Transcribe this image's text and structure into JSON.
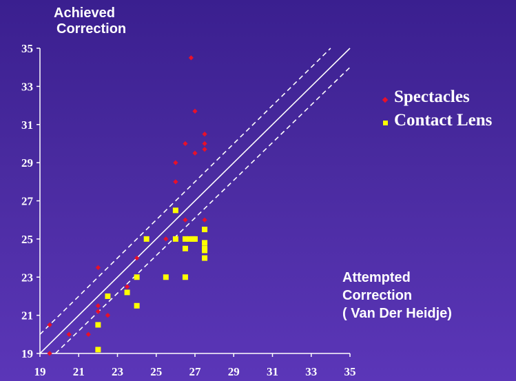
{
  "chart_data": {
    "type": "scatter",
    "ylabel_lines": [
      "Achieved",
      "Correction"
    ],
    "xlabel_lines": [
      "Attempted",
      "Correction",
      "( Van Der Heidje)"
    ],
    "xlim": [
      19,
      35
    ],
    "ylim": [
      19,
      35
    ],
    "xticks": [
      19,
      21,
      23,
      25,
      27,
      29,
      31,
      33,
      35
    ],
    "yticks": [
      19,
      21,
      23,
      25,
      27,
      29,
      31,
      33,
      35
    ],
    "legend_position": "right",
    "reference_lines": [
      {
        "style": "solid",
        "points": [
          [
            19,
            19
          ],
          [
            35,
            35
          ]
        ]
      },
      {
        "style": "dashed",
        "points": [
          [
            19,
            20
          ],
          [
            34,
            35
          ]
        ]
      },
      {
        "style": "dashed",
        "points": [
          [
            19.8,
            19
          ],
          [
            35,
            34
          ]
        ]
      }
    ],
    "series": [
      {
        "name": "Spectacles",
        "marker": "diamond",
        "color": "#e8102a",
        "points": [
          [
            19.5,
            20.5
          ],
          [
            19.5,
            19.0
          ],
          [
            20.5,
            20.0
          ],
          [
            21.5,
            20.0
          ],
          [
            22.0,
            23.5
          ],
          [
            22.0,
            21.5
          ],
          [
            22.0,
            21.2
          ],
          [
            22.5,
            21.0
          ],
          [
            23.5,
            22.5
          ],
          [
            24.0,
            24.0
          ],
          [
            25.5,
            25.0
          ],
          [
            26.0,
            29.0
          ],
          [
            26.0,
            28.0
          ],
          [
            26.5,
            30.0
          ],
          [
            26.5,
            26.0
          ],
          [
            26.8,
            34.5
          ],
          [
            27.0,
            31.7
          ],
          [
            27.0,
            29.5
          ],
          [
            27.5,
            30.5
          ],
          [
            27.5,
            30.0
          ],
          [
            27.5,
            29.7
          ],
          [
            27.5,
            26.0
          ],
          [
            27.0,
            25.0
          ]
        ]
      },
      {
        "name": "Contact Lens",
        "marker": "square",
        "color": "#ffff00",
        "points": [
          [
            22.0,
            20.5
          ],
          [
            22.0,
            19.2
          ],
          [
            22.5,
            22.0
          ],
          [
            23.5,
            22.2
          ],
          [
            24.0,
            23.0
          ],
          [
            24.0,
            21.5
          ],
          [
            24.5,
            25.0
          ],
          [
            25.5,
            23.0
          ],
          [
            26.0,
            26.5
          ],
          [
            26.0,
            25.0
          ],
          [
            26.5,
            25.0
          ],
          [
            26.5,
            24.5
          ],
          [
            26.5,
            23.0
          ],
          [
            26.7,
            25.0
          ],
          [
            26.9,
            25.0
          ],
          [
            27.0,
            25.0
          ],
          [
            27.5,
            25.5
          ],
          [
            27.5,
            24.8
          ],
          [
            27.5,
            24.5
          ],
          [
            27.5,
            24.4
          ],
          [
            27.5,
            24.0
          ]
        ]
      }
    ]
  }
}
